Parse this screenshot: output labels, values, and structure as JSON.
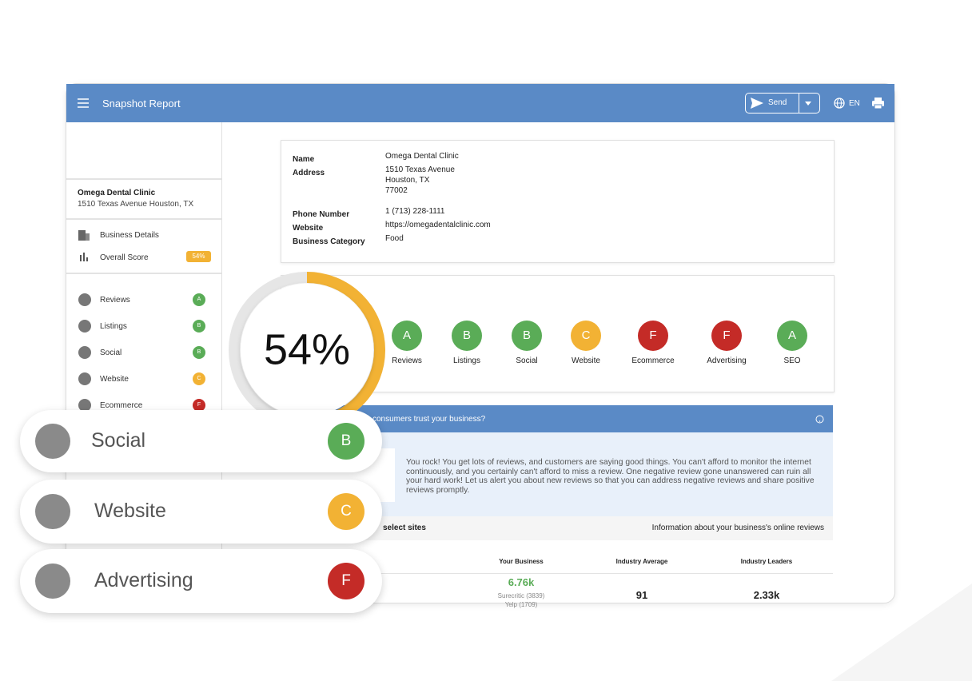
{
  "header": {
    "title": "Snapshot Report",
    "send": "Send",
    "language": "EN"
  },
  "sidebar": {
    "business_name": "Omega Dental Clinic",
    "business_address": "1510 Texas Avenue Houston, TX",
    "nav": [
      {
        "label": "Business Details"
      },
      {
        "label": "Overall Score"
      }
    ],
    "sections": [
      {
        "label": "Reviews",
        "grade": "A",
        "color": "#5aac57"
      },
      {
        "label": "Listings",
        "grade": "B",
        "color": "#5aac57"
      },
      {
        "label": "Social",
        "grade": "B",
        "color": "#5aac57"
      },
      {
        "label": "Website",
        "grade": "C",
        "color": "#f2b234"
      },
      {
        "label": "Ecommerce",
        "grade": "F",
        "color": "#c42b27"
      }
    ]
  },
  "overall_score": {
    "value": 54,
    "label": "54%",
    "color": "#f2b234"
  },
  "business_info": {
    "rows": [
      {
        "label": "Name",
        "lines": [
          "Omega Dental Clinic"
        ]
      },
      {
        "label": "Address",
        "lines": [
          "1510 Texas Avenue",
          "Houston, TX",
          "77002"
        ]
      },
      {
        "label": "Phone Number",
        "lines": [
          "1 (713) 228-1111"
        ]
      },
      {
        "label": "Website",
        "lines": [
          "https://omegadentalclinic.com"
        ]
      },
      {
        "label": "Business Category",
        "lines": [
          "Food"
        ]
      }
    ]
  },
  "grades": [
    {
      "label": "Reviews",
      "grade": "A",
      "color": "#5aac57"
    },
    {
      "label": "Listings",
      "grade": "B",
      "color": "#5aac57"
    },
    {
      "label": "Social",
      "grade": "B",
      "color": "#5aac57"
    },
    {
      "label": "Website",
      "grade": "C",
      "color": "#f2b234"
    },
    {
      "label": "Ecommerce",
      "grade": "F",
      "color": "#c42b27"
    },
    {
      "label": "Advertising",
      "grade": "F",
      "color": "#c42b27"
    },
    {
      "label": "SEO",
      "grade": "A",
      "color": "#5aac57"
    }
  ],
  "reviews_panel": {
    "question": "consumers trust your business?",
    "message": "You rock! You get lots of reviews, and customers are saying good things. You can't afford to monitor the internet continuously, and you certainly can't afford to miss a review. One negative review gone unanswered can ruin all your hard work! Let us alert you about new reviews so that you can address negative reviews and share positive reviews promptly.",
    "subtitle": "select sites",
    "info": "Information about your business's online reviews",
    "columns": [
      "Your Business",
      "Industry Average",
      "Industry Leaders"
    ],
    "row": {
      "your_business": "6.76k",
      "sources": [
        "Surecritic (3839)",
        "Yelp (1709)"
      ],
      "industry_average": "91",
      "industry_leaders": "2.33k"
    }
  },
  "cards": [
    {
      "label": "Social",
      "grade": "B",
      "color": "#5aac57"
    },
    {
      "label": "Website",
      "grade": "C",
      "color": "#f2b234"
    },
    {
      "label": "Advertising",
      "grade": "F",
      "color": "#c42b27"
    }
  ]
}
